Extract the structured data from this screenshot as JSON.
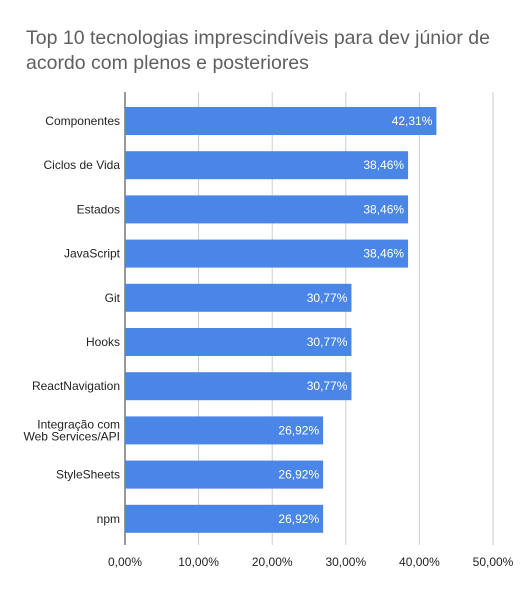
{
  "chart_data": {
    "type": "bar",
    "orientation": "horizontal",
    "title": "Top 10 tecnologias imprescindíveis para dev júnior de acordo com plenos e posteriores",
    "categories": [
      "Componentes",
      "Ciclos de Vida",
      "Estados",
      "JavaScript",
      "Git",
      "Hooks",
      "ReactNavigation",
      "Integração com Web Services/API",
      "StyleSheets",
      "npm"
    ],
    "values": [
      42.31,
      38.46,
      38.46,
      38.46,
      30.77,
      30.77,
      30.77,
      26.92,
      26.92,
      26.92
    ],
    "data_labels": [
      "42,31%",
      "38,46%",
      "38,46%",
      "38,46%",
      "30,77%",
      "30,77%",
      "30,77%",
      "26,92%",
      "26,92%",
      "26,92%"
    ],
    "xlim": [
      0,
      50
    ],
    "x_ticks": [
      0,
      10,
      20,
      30,
      40,
      50
    ],
    "x_tick_labels": [
      "0,00%",
      "10,00%",
      "20,00%",
      "30,00%",
      "40,00%",
      "50,00%"
    ],
    "grid": true,
    "legend": "none",
    "bar_color": "#4a86e8",
    "grid_color": "#cccccc"
  }
}
